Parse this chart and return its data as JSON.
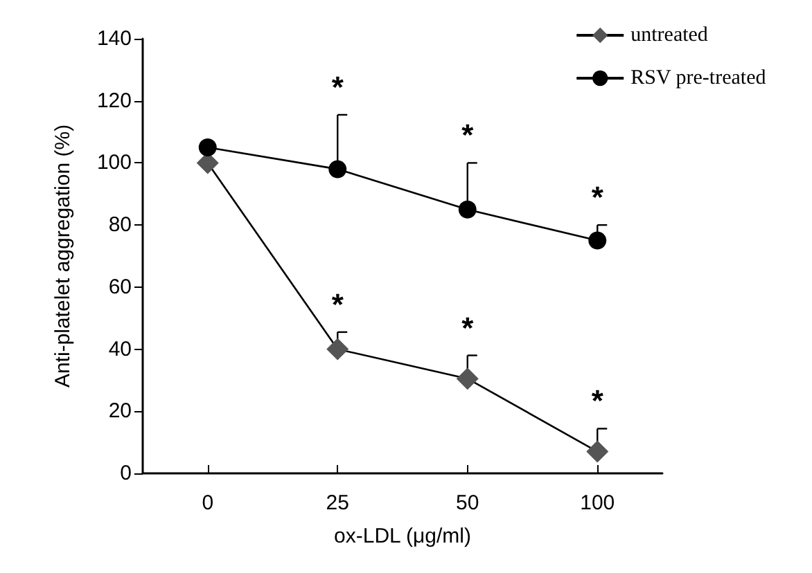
{
  "chart_data": {
    "type": "line",
    "xlabel": "ox-LDL (μg/ml)",
    "ylabel": "Anti-platelet aggregation (%)",
    "categories": [
      "0",
      "25",
      "50",
      "100"
    ],
    "series": [
      {
        "name": "untreated",
        "color": "#555555",
        "marker": "diamond",
        "values": [
          100,
          40,
          30.5,
          7
        ],
        "errors": [
          null,
          [
            40,
            45.5
          ],
          [
            30.5,
            38
          ],
          [
            7,
            14.4
          ]
        ]
      },
      {
        "name": "RSV pre-treated",
        "color": "#000000",
        "marker": "circle",
        "values": [
          105,
          98,
          85,
          75
        ],
        "errors": [
          null,
          [
            98,
            115.5
          ],
          [
            85,
            100
          ],
          [
            75,
            80
          ]
        ]
      }
    ],
    "ylim": [
      0,
      140
    ],
    "yticks": [
      0,
      20,
      40,
      60,
      80,
      100,
      120,
      140
    ],
    "grid": false,
    "legend": "top right",
    "annotations": [
      "*",
      "*",
      "*",
      "*",
      "*",
      "*"
    ]
  }
}
